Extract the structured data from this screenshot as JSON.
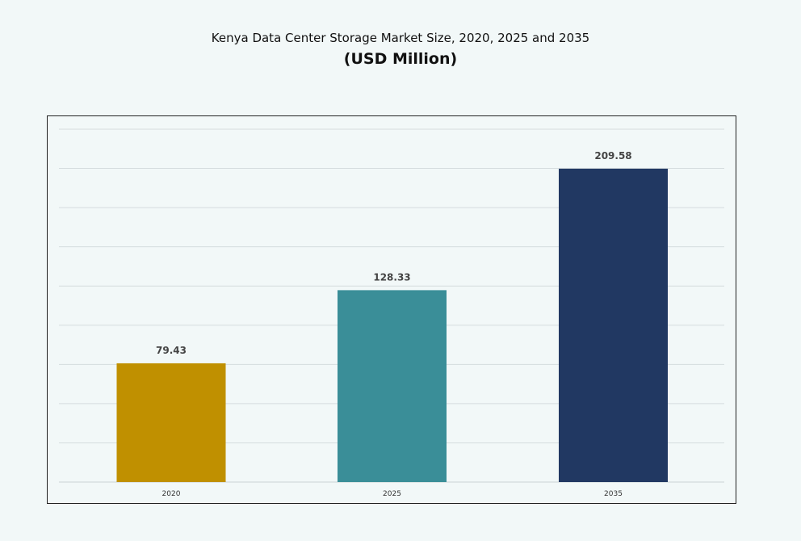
{
  "chart_data": {
    "type": "bar",
    "title": "Kenya Data Center Storage Market Size, 2020, 2025 and 2035",
    "subtitle": "(USD Million)",
    "categories": [
      "2020",
      "2025",
      "2035"
    ],
    "values": [
      79.43,
      128.33,
      209.58
    ],
    "data_labels": [
      "79.43",
      "128.33",
      "209.58"
    ],
    "colors": [
      "#C09000",
      "#3A8E98",
      "#213862"
    ],
    "xlabel": "",
    "ylabel": "",
    "ylim": [
      0,
      236
    ],
    "grid": true,
    "legend": "none"
  }
}
